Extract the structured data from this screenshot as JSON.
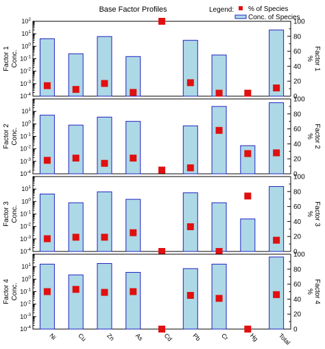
{
  "chart_data": {
    "type": "bar",
    "title": "Base Factor Profiles",
    "legend": {
      "label": "Legend:",
      "position": "top-right",
      "items": [
        {
          "name": "% of Species",
          "color": "#e01010",
          "marker": "square"
        },
        {
          "name": "Conc. of Species",
          "color": "#add8e6",
          "edge": "#2020c0",
          "marker": "bar"
        }
      ]
    },
    "categories": [
      "Ni",
      "Cu",
      "Zn",
      "As",
      "Cd",
      "Pb",
      "Cr",
      "Hg",
      "Total"
    ],
    "left_axis": {
      "scale": "log",
      "ylim": [
        0.0001,
        100
      ],
      "tick_labels": [
        "10-4",
        "10-3",
        "10-2",
        "10-1",
        "100",
        "101",
        "102"
      ]
    },
    "right_axis": {
      "label": "%",
      "ylim": [
        0,
        100
      ],
      "tick_labels": [
        "0",
        "20",
        "40",
        "60",
        "80",
        "100"
      ]
    },
    "panels": [
      {
        "name": "Factor 1",
        "ylabel_lines": [
          "Factor 1",
          "Conc."
        ],
        "right_label": "Factor 1",
        "conc": [
          4,
          0.25,
          6,
          0.15,
          null,
          3,
          0.2,
          null,
          20
        ],
        "percent": [
          14,
          9,
          17,
          5,
          100,
          18,
          4,
          4,
          11
        ]
      },
      {
        "name": "Factor 2",
        "ylabel_lines": [
          "Factor 2",
          "Conc."
        ],
        "right_label": "Factor 2",
        "conc": [
          5,
          0.8,
          3.5,
          1.6,
          null,
          0.7,
          25,
          0.018,
          50
        ],
        "percent": [
          18,
          21,
          14,
          21,
          5,
          8,
          58,
          27,
          28
        ]
      },
      {
        "name": "Factor 3",
        "ylabel_lines": [
          "Factor 3",
          "Conc."
        ],
        "right_label": "Factor 3",
        "conc": [
          4,
          0.8,
          6,
          1.5,
          null,
          5,
          0.8,
          0.04,
          16
        ],
        "percent": [
          17,
          19,
          19,
          25,
          0,
          33,
          0,
          74,
          15
        ]
      },
      {
        "name": "Factor 4",
        "ylabel_lines": [
          "Factor 4",
          "Conc."
        ],
        "right_label": "Factor 4",
        "conc": [
          16,
          2.2,
          18,
          3.5,
          null,
          7,
          16,
          null,
          60
        ],
        "percent": [
          50,
          53,
          49,
          50,
          0,
          45,
          41,
          0,
          46
        ]
      }
    ]
  }
}
